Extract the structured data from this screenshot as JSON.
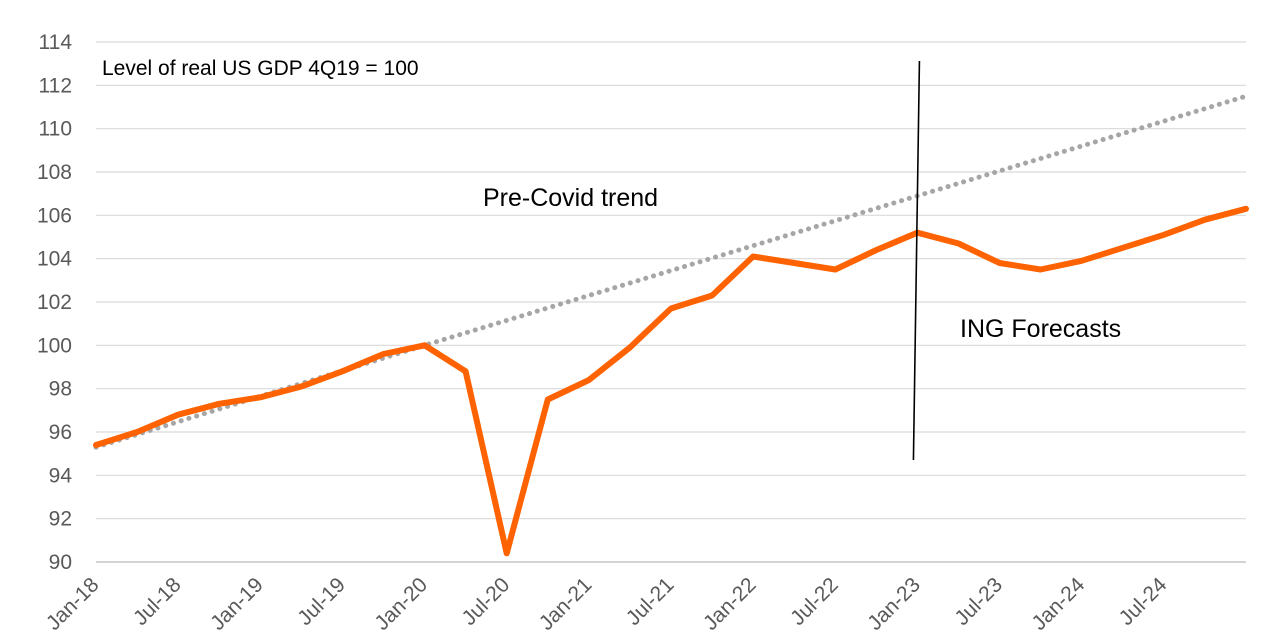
{
  "chart_data": {
    "type": "line",
    "title": "",
    "xlabel": "",
    "ylabel": "",
    "ylim": [
      90,
      114
    ],
    "y_ticks": [
      90,
      92,
      94,
      96,
      98,
      100,
      102,
      104,
      106,
      108,
      110,
      112,
      114
    ],
    "x_ticks": [
      "Jan-18",
      "Jul-18",
      "Jan-19",
      "Jul-19",
      "Jan-20",
      "Jul-20",
      "Jan-21",
      "Jul-21",
      "Jan-22",
      "Jul-22",
      "Jan-23",
      "Jul-23",
      "Jan-24",
      "Jul-24"
    ],
    "grid": true,
    "annotations": {
      "subtitle": "Level of real US GDP 4Q19 = 100",
      "trend_label": "Pre-Covid trend",
      "forecast_label": "ING Forecasts"
    },
    "forecast_divider_x": "Jan-23",
    "series": [
      {
        "name": "Level of real US GDP",
        "style": "solid",
        "color": "#ff6200",
        "points": [
          [
            "Jan-18",
            95.4
          ],
          [
            "Apr-18",
            96.0
          ],
          [
            "Jul-18",
            96.8
          ],
          [
            "Oct-18",
            97.3
          ],
          [
            "Jan-19",
            97.6
          ],
          [
            "Apr-19",
            98.1
          ],
          [
            "Jul-19",
            98.8
          ],
          [
            "Oct-19",
            99.6
          ],
          [
            "Jan-20",
            100.0
          ],
          [
            "Apr-20",
            98.8
          ],
          [
            "Jul-20",
            90.4
          ],
          [
            "Oct-20",
            97.5
          ],
          [
            "Jan-21",
            98.4
          ],
          [
            "Apr-21",
            99.9
          ],
          [
            "Jul-21",
            101.7
          ],
          [
            "Oct-21",
            102.3
          ],
          [
            "Jan-22",
            104.1
          ],
          [
            "Apr-22",
            103.8
          ],
          [
            "Jul-22",
            103.5
          ],
          [
            "Oct-22",
            104.4
          ],
          [
            "Jan-23",
            105.2
          ],
          [
            "Apr-23",
            104.7
          ],
          [
            "Jul-23",
            103.8
          ],
          [
            "Oct-23",
            103.5
          ],
          [
            "Jan-24",
            103.9
          ],
          [
            "Apr-24",
            104.5
          ],
          [
            "Jul-24",
            105.1
          ],
          [
            "Oct-24",
            105.8
          ],
          [
            "Jan-25",
            106.3
          ]
        ]
      },
      {
        "name": "Pre-Covid trend",
        "style": "dotted",
        "color": "#a6a6a6",
        "points": [
          [
            "Jan-18",
            95.3
          ],
          [
            "Jan-20",
            100.0
          ],
          [
            "Jan-25",
            111.5
          ]
        ]
      }
    ]
  }
}
